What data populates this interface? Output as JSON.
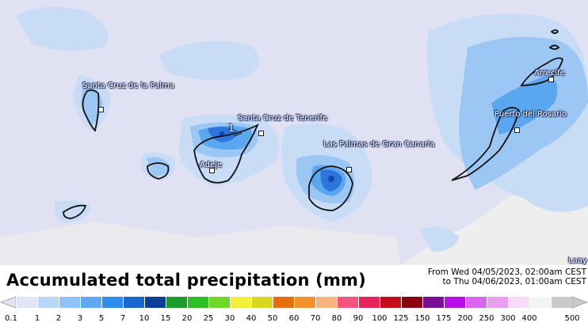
{
  "map": {
    "base_color": "#e1e1f4",
    "precip_colors": {
      "light": "#b5d3f5",
      "medium": "#5aa6ef",
      "heavy": "#2d74dd",
      "max": "#1748a8"
    },
    "cities": [
      {
        "id": "santa-cruz-de-la-palma",
        "name": "Santa Cruz de la Palma"
      },
      {
        "id": "santa-cruz-de-tenerife",
        "name": "Santa Cruz de Tenerife"
      },
      {
        "id": "adeje",
        "name": "Adeje"
      },
      {
        "id": "las-palmas-de-gran-canaria",
        "name": "Las Palmas de Gran Canaria"
      },
      {
        "id": "puerto-del-rosario",
        "name": "Puerto del Rosario"
      },
      {
        "id": "arrecife",
        "name": "Arrecife"
      },
      {
        "id": "laayoune",
        "name": "Laay"
      }
    ],
    "peak_marker": "1"
  },
  "footer": {
    "title": "Accumulated total precipitation (mm)",
    "period_from": "From Wed 04/05/2023, 02:00am CEST",
    "period_to": "to Thu 04/06/2023, 01:00am CEST"
  },
  "legend": {
    "ticks": [
      "0.1",
      "1",
      "2",
      "3",
      "5",
      "7",
      "10",
      "15",
      "20",
      "25",
      "30",
      "40",
      "50",
      "60",
      "70",
      "80",
      "90",
      "100",
      "125",
      "150",
      "175",
      "200",
      "250",
      "300",
      "400",
      "500"
    ],
    "colors": [
      "#e3e3f6",
      "#b9d6f7",
      "#8fc2f6",
      "#5ea9f1",
      "#2f8cea",
      "#1a66cf",
      "#0c3f96",
      "#1c9b2b",
      "#2dbf25",
      "#6fd827",
      "#f3f03a",
      "#d9d61f",
      "#e66e10",
      "#f3922d",
      "#f7b27d",
      "#f2547e",
      "#e6255a",
      "#c30d1b",
      "#8d0310",
      "#7a0f95",
      "#b50ee6",
      "#d866ef",
      "#ea9ef2",
      "#f7dcf8",
      "#f4f4f4",
      "#c9c9c9"
    ]
  }
}
